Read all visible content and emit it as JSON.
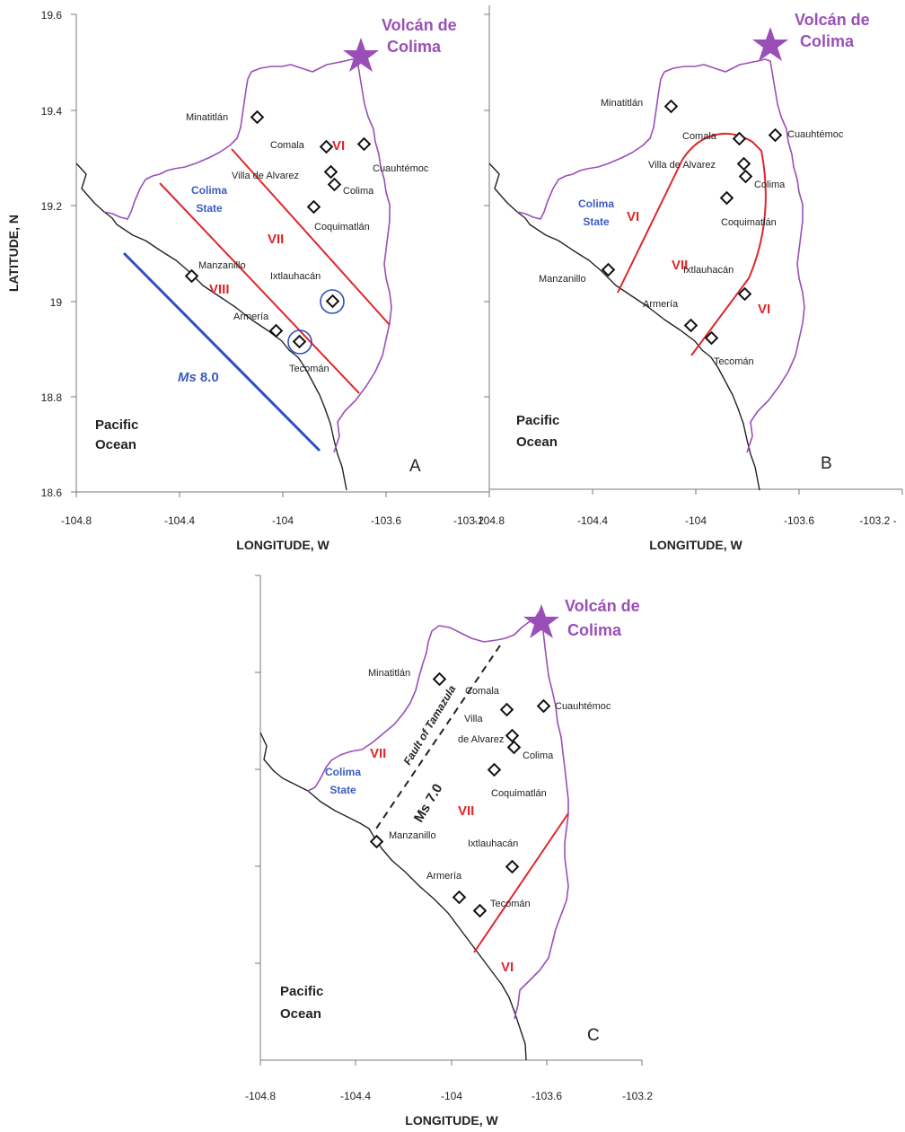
{
  "panels": [
    {
      "id": "A",
      "label": "A",
      "y_axis_label": "LATITUDE, N",
      "x_axis_label": "LONGITUDE, W",
      "x_ticks": [
        "-104.8",
        "-104.4",
        "-104",
        "-103.6",
        "-103.2"
      ],
      "y_ticks": [
        "19.6",
        "19.4",
        "19.2",
        "19",
        "18.8",
        "18.6"
      ],
      "volcano": [
        "Volcán de",
        "Colima"
      ],
      "state_label": [
        "Colima",
        "State"
      ],
      "ocean_label": [
        "Pacific",
        "Ocean"
      ],
      "magnitude_label": {
        "prefix": "Ms",
        "value": "8.0"
      },
      "zones": [
        "VI",
        "VII",
        "VIII"
      ],
      "cities": [
        "Minatitlán",
        "Comala",
        "Cuauhtémoc",
        "Villa de Alvarez",
        "Colima",
        "Coquimatlán",
        "Manzanillo",
        "Ixtlauhacán",
        "Armería",
        "Tecomán"
      ]
    },
    {
      "id": "B",
      "label": "B",
      "x_axis_label": "LONGITUDE, W",
      "x_ticks": [
        "-104.8",
        "-104.4",
        "-104",
        "-103.6",
        "-103.2 -"
      ],
      "volcano": [
        "Volcán de",
        "Colima"
      ],
      "state_label": [
        "Colima",
        "State"
      ],
      "ocean_label": [
        "Pacific",
        "Ocean"
      ],
      "zones": [
        "VI",
        "VII",
        "VI"
      ],
      "cities": [
        "Minatitlán",
        "Comala",
        "Cuauhtémoc",
        "Villa de Alvarez",
        "Colima",
        "Coquimatlán",
        "Manzanillo",
        "Ixtlauhacán",
        "Armería",
        "Tecomán"
      ]
    },
    {
      "id": "C",
      "label": "C",
      "x_axis_label": "LONGITUDE, W",
      "x_ticks": [
        "-104.8",
        "-104.4",
        "-104",
        "-103.6",
        "-103.2"
      ],
      "volcano": [
        "Volcán de",
        "Colima"
      ],
      "state_label": [
        "Colima",
        "State"
      ],
      "ocean_label": [
        "Pacific",
        "Ocean"
      ],
      "magnitude_label": {
        "prefix": "Ms",
        "value": "7.0"
      },
      "fault_label": "Fault of Tamazula",
      "zones": [
        "VII",
        "VII",
        "VI"
      ],
      "cities": [
        "Minatitlán",
        "Comala",
        "Cuauhtémoc",
        "Villa",
        "de Alvarez",
        "Colima",
        "Coquimatlán",
        "Manzanillo",
        "Ixtlauhacán",
        "Armería",
        "Tecomán"
      ]
    }
  ],
  "colors": {
    "intensity_lines": "#e0262a",
    "rupture_line": "#2e4fc0",
    "volcano": "#9a4fb8",
    "state_border": "#9a4fb8"
  }
}
